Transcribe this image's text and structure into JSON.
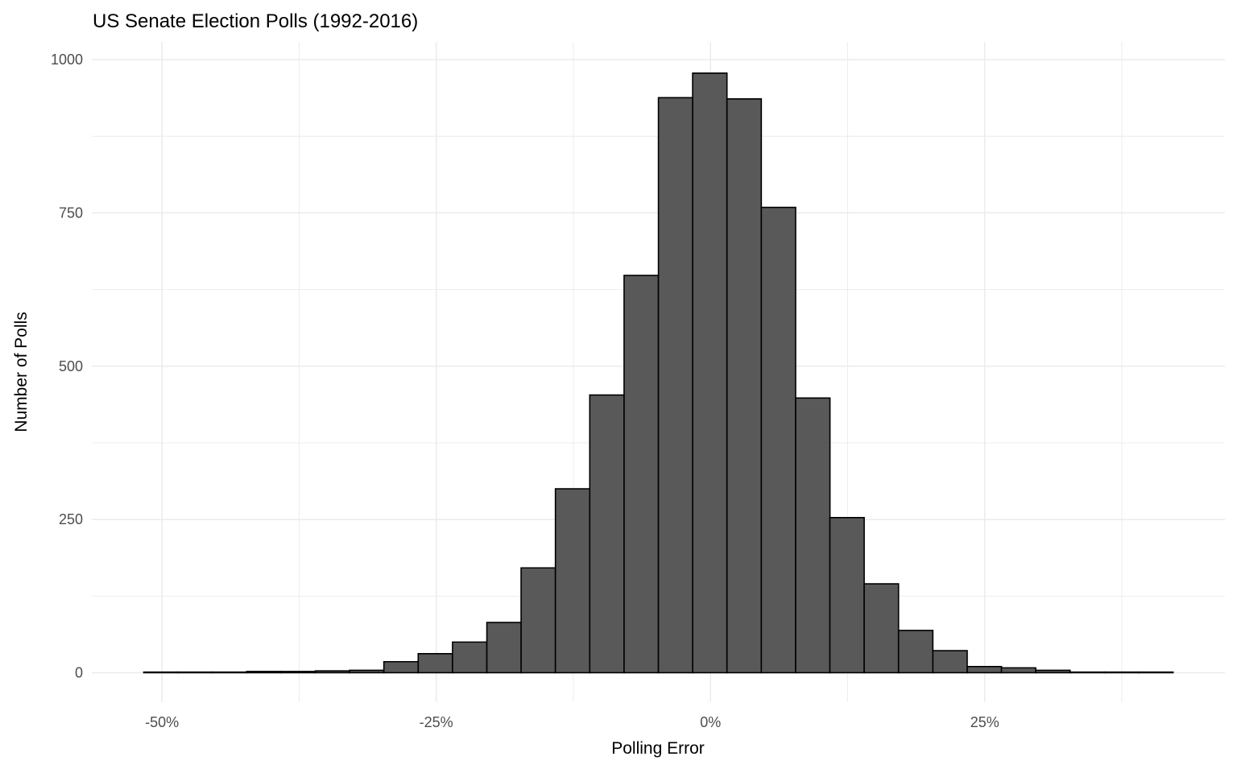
{
  "chart_data": {
    "type": "bar",
    "subtype": "histogram",
    "title": "US Senate Election Polls (1992-2016)",
    "xlabel": "Polling Error",
    "ylabel": "Number of Polls",
    "x_tick_values": [
      -50,
      -25,
      0,
      25
    ],
    "x_tick_labels": [
      "-50%",
      "-25%",
      "0%",
      "25%"
    ],
    "x_minor_ticks": [
      -37.5,
      -12.5,
      12.5,
      37.5
    ],
    "y_tick_values": [
      0,
      250,
      500,
      750,
      1000
    ],
    "y_tick_labels": [
      "0",
      "250",
      "500",
      "750",
      "1000"
    ],
    "y_minor_ticks": [
      125,
      375,
      625,
      875
    ],
    "xlim": [
      -56.4,
      46.9
    ],
    "ylim": [
      -48,
      1029
    ],
    "grid": "on",
    "legend": "none",
    "binwidth_pct": 3.13,
    "bins": [
      {
        "center": -50.1,
        "count": 1
      },
      {
        "center": -46.98,
        "count": 1
      },
      {
        "center": -43.85,
        "count": 1
      },
      {
        "center": -40.72,
        "count": 2
      },
      {
        "center": -37.59,
        "count": 2
      },
      {
        "center": -34.46,
        "count": 3
      },
      {
        "center": -31.34,
        "count": 4
      },
      {
        "center": -28.21,
        "count": 18
      },
      {
        "center": -25.08,
        "count": 31
      },
      {
        "center": -21.95,
        "count": 50
      },
      {
        "center": -18.82,
        "count": 82
      },
      {
        "center": -15.7,
        "count": 171
      },
      {
        "center": -12.57,
        "count": 300
      },
      {
        "center": -9.44,
        "count": 453
      },
      {
        "center": -6.31,
        "count": 648
      },
      {
        "center": -3.18,
        "count": 938
      },
      {
        "center": -0.06,
        "count": 978
      },
      {
        "center": 3.07,
        "count": 936
      },
      {
        "center": 6.2,
        "count": 759
      },
      {
        "center": 9.33,
        "count": 448
      },
      {
        "center": 12.45,
        "count": 253
      },
      {
        "center": 15.58,
        "count": 145
      },
      {
        "center": 18.71,
        "count": 69
      },
      {
        "center": 21.84,
        "count": 36
      },
      {
        "center": 24.97,
        "count": 10
      },
      {
        "center": 28.09,
        "count": 8
      },
      {
        "center": 31.22,
        "count": 4
      },
      {
        "center": 34.35,
        "count": 1
      },
      {
        "center": 37.48,
        "count": 1
      },
      {
        "center": 40.61,
        "count": 1
      }
    ],
    "colors": {
      "bar_fill": "#595959",
      "bar_stroke": "#000000",
      "gridline": "#ebebeb",
      "tick_label": "#4d4d4d",
      "title_text": "#000000",
      "background": "#ffffff"
    }
  }
}
